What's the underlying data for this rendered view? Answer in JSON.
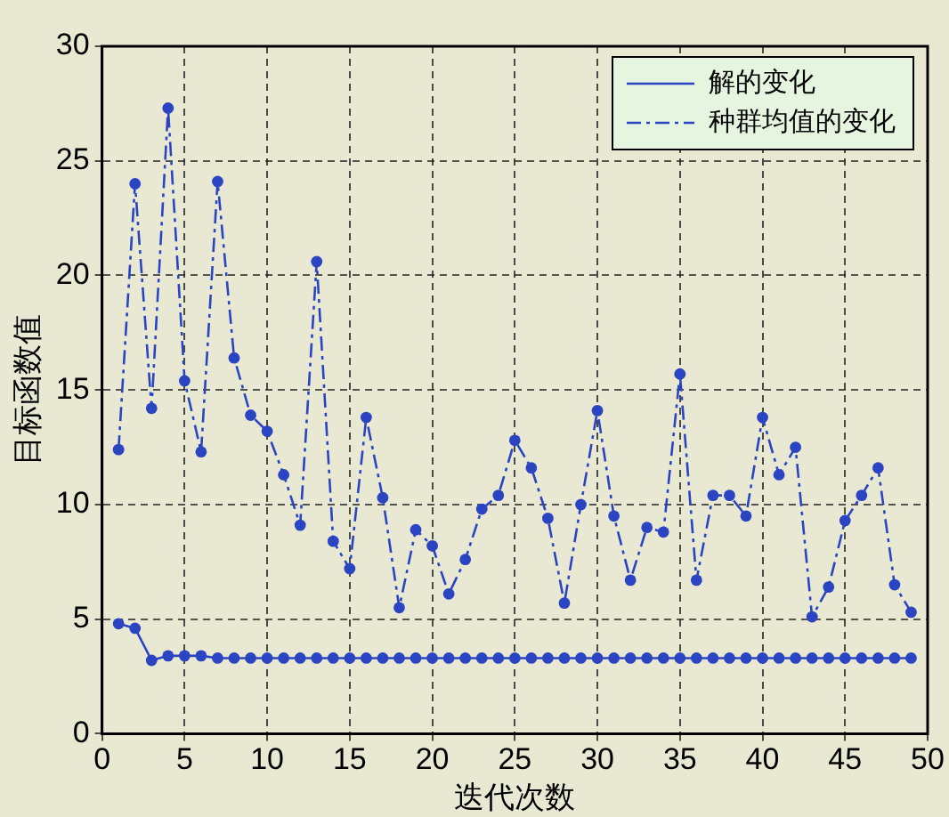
{
  "chart_data": {
    "type": "line",
    "xlabel": "迭代次数",
    "ylabel": "目标函数值",
    "x": [
      1,
      2,
      3,
      4,
      5,
      6,
      7,
      8,
      9,
      10,
      11,
      12,
      13,
      14,
      15,
      16,
      17,
      18,
      19,
      20,
      21,
      22,
      23,
      24,
      25,
      26,
      27,
      28,
      29,
      30,
      31,
      32,
      33,
      34,
      35,
      36,
      37,
      38,
      39,
      40,
      41,
      42,
      43,
      44,
      45,
      46,
      47,
      48,
      49
    ],
    "series": [
      {
        "name": "解的变化",
        "color": "#2b45c2",
        "line_style": "solid",
        "values": [
          4.8,
          4.6,
          3.2,
          3.4,
          3.4,
          3.4,
          3.3,
          3.3,
          3.3,
          3.3,
          3.3,
          3.3,
          3.3,
          3.3,
          3.3,
          3.3,
          3.3,
          3.3,
          3.3,
          3.3,
          3.3,
          3.3,
          3.3,
          3.3,
          3.3,
          3.3,
          3.3,
          3.3,
          3.3,
          3.3,
          3.3,
          3.3,
          3.3,
          3.3,
          3.3,
          3.3,
          3.3,
          3.3,
          3.3,
          3.3,
          3.3,
          3.3,
          3.3,
          3.3,
          3.3,
          3.3,
          3.3,
          3.3,
          3.3
        ]
      },
      {
        "name": "种群均值的变化",
        "color": "#2b45c2",
        "line_style": "dashed",
        "values": [
          12.4,
          24.0,
          14.2,
          27.3,
          15.4,
          12.3,
          24.1,
          16.4,
          13.9,
          13.2,
          11.3,
          9.1,
          20.6,
          8.4,
          7.2,
          13.8,
          10.3,
          5.5,
          8.9,
          8.2,
          6.1,
          7.6,
          9.8,
          10.4,
          12.8,
          11.6,
          9.4,
          5.7,
          10.0,
          14.1,
          9.5,
          6.7,
          9.0,
          8.8,
          15.7,
          6.7,
          10.4,
          10.4,
          9.5,
          13.8,
          11.3,
          12.5,
          5.1,
          6.4,
          9.3,
          10.4,
          11.6,
          6.5,
          5.3
        ]
      }
    ],
    "xlim": [
      0,
      50
    ],
    "xticks": [
      0,
      5,
      10,
      15,
      20,
      25,
      30,
      35,
      40,
      45,
      50
    ],
    "ylim": [
      0,
      30
    ],
    "yticks": [
      0,
      5,
      10,
      15,
      20,
      25,
      30
    ],
    "grid": true,
    "legend": "top right",
    "marker": "circle"
  }
}
